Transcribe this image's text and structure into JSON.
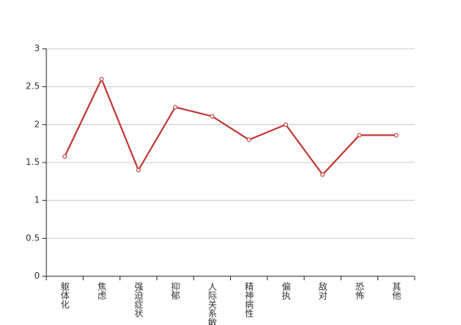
{
  "chart_data": {
    "type": "line",
    "categories": [
      "躯体化",
      "焦虑",
      "强迫症状",
      "抑郁",
      "人际关系敏感",
      "精神病性",
      "偏执",
      "敌对",
      "恐怖",
      "其他"
    ],
    "values": [
      1.58,
      2.6,
      1.4,
      2.23,
      2.11,
      1.8,
      2.0,
      1.34,
      1.86,
      1.86
    ],
    "color": "#c23531",
    "ylim": [
      0,
      3
    ],
    "yticks": [
      0,
      0.5,
      1,
      1.5,
      2,
      2.5,
      3
    ],
    "grid": true
  }
}
